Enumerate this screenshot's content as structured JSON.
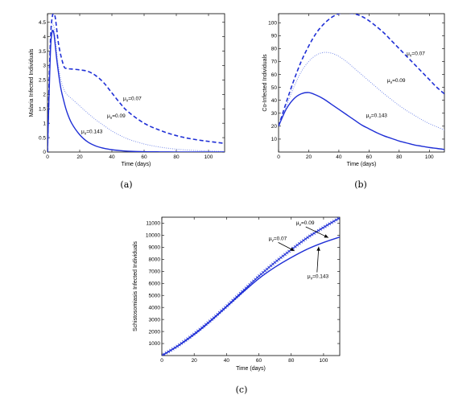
{
  "chart_data": [
    {
      "type": "line",
      "caption": "(a)",
      "xlabel": "Time (days)",
      "ylabel": "Malaria Infected Individuals",
      "xlim": [
        0,
        110
      ],
      "ylim": [
        0,
        4.8
      ],
      "xticks": [
        0,
        20,
        40,
        60,
        80,
        100
      ],
      "yticks": [
        0,
        0.5,
        1,
        1.5,
        2,
        2.5,
        3,
        3.5,
        4,
        4.5
      ],
      "ytick_labels": [
        "0",
        "0.5",
        "1",
        "1.5",
        "2",
        "2.5",
        "3",
        "3.5",
        "4",
        "4.5"
      ],
      "grid": false,
      "series": [
        {
          "name": "μv=0.07",
          "style": "dashed",
          "color": "#1f2fd6",
          "x": [
            0,
            1,
            2,
            3,
            4,
            5,
            7,
            10,
            12,
            15,
            20,
            25,
            30,
            35,
            40,
            45,
            50,
            60,
            70,
            80,
            90,
            100,
            110
          ],
          "y": [
            0,
            2.4,
            4.1,
            4.7,
            4.8,
            4.6,
            3.7,
            3.0,
            2.9,
            2.88,
            2.85,
            2.8,
            2.65,
            2.4,
            2.05,
            1.7,
            1.4,
            1.0,
            0.75,
            0.57,
            0.45,
            0.37,
            0.3
          ]
        },
        {
          "name": "μv=0.09",
          "style": "dotted",
          "color": "#7a8ee8",
          "x": [
            0,
            1,
            2,
            3,
            4,
            5,
            6,
            8,
            10,
            12,
            15,
            20,
            25,
            30,
            35,
            40,
            45,
            50,
            60,
            70,
            80,
            90,
            100,
            110
          ],
          "y": [
            0,
            2.2,
            3.9,
            4.4,
            4.35,
            3.9,
            3.3,
            2.6,
            2.2,
            2.0,
            1.85,
            1.6,
            1.35,
            1.12,
            0.92,
            0.73,
            0.58,
            0.45,
            0.28,
            0.17,
            0.1,
            0.06,
            0.035,
            0.02
          ]
        },
        {
          "name": "μv=0.143",
          "style": "solid",
          "color": "#1f2fd6",
          "x": [
            0,
            1,
            2,
            3,
            4,
            5,
            6,
            8,
            10,
            12,
            15,
            20,
            25,
            30,
            35,
            40,
            45,
            50,
            60,
            70,
            80,
            90,
            100,
            110
          ],
          "y": [
            0,
            2.0,
            3.7,
            4.2,
            4.1,
            3.6,
            3.1,
            2.3,
            1.8,
            1.4,
            1.0,
            0.6,
            0.35,
            0.21,
            0.13,
            0.08,
            0.05,
            0.03,
            0.012,
            0.006,
            0.003,
            0.002,
            0.001,
            0.0
          ]
        }
      ],
      "annotations": [
        {
          "mu": "μ",
          "sub": "v",
          "text": "=0.07",
          "x": 47,
          "y": 1.8
        },
        {
          "mu": "μ",
          "sub": "v",
          "text": "=0.09",
          "x": 37,
          "y": 1.2
        },
        {
          "mu": "μ",
          "sub": "v",
          "text": "=0.143",
          "x": 21,
          "y": 0.65
        }
      ]
    },
    {
      "type": "line",
      "caption": "(b)",
      "xlabel": "Time (days)",
      "ylabel": "Co-Infected Individuals",
      "xlim": [
        0,
        110
      ],
      "ylim": [
        0,
        107
      ],
      "xticks": [
        0,
        20,
        40,
        60,
        80,
        100
      ],
      "yticks": [
        10,
        20,
        30,
        40,
        50,
        60,
        70,
        80,
        90,
        100
      ],
      "ytick_labels": [
        "10",
        "20",
        "30",
        "40",
        "50",
        "60",
        "70",
        "80",
        "90",
        "100"
      ],
      "grid": false,
      "series": [
        {
          "name": "μv=0.07",
          "style": "dashed",
          "color": "#1f2fd6",
          "x": [
            0,
            5,
            10,
            15,
            20,
            25,
            30,
            35,
            40,
            45,
            50,
            55,
            60,
            65,
            70,
            75,
            80,
            85,
            90,
            95,
            100,
            105,
            110
          ],
          "y": [
            20,
            38,
            55,
            70,
            82,
            92,
            99,
            104,
            107,
            107.5,
            107,
            105,
            101.5,
            97,
            92,
            86,
            80,
            74,
            68,
            62,
            56,
            50,
            45
          ]
        },
        {
          "name": "μv=0.09",
          "style": "dotted",
          "color": "#7a8ee8",
          "x": [
            0,
            5,
            10,
            15,
            20,
            25,
            30,
            35,
            40,
            45,
            50,
            55,
            60,
            65,
            70,
            75,
            80,
            85,
            90,
            95,
            100,
            105,
            110
          ],
          "y": [
            20,
            35,
            50,
            62,
            70,
            75,
            77,
            76.5,
            74,
            70,
            65,
            60,
            55,
            50,
            45,
            40.5,
            36,
            32,
            28.5,
            25,
            22,
            19.5,
            17
          ]
        },
        {
          "name": "μv=0.143",
          "style": "solid",
          "color": "#1f2fd6",
          "x": [
            0,
            5,
            10,
            15,
            20,
            25,
            30,
            35,
            40,
            45,
            50,
            55,
            60,
            65,
            70,
            75,
            80,
            85,
            90,
            95,
            100,
            105,
            110
          ],
          "y": [
            20,
            33,
            41,
            45,
            46,
            44,
            41,
            37,
            33,
            29,
            25,
            21,
            18,
            15,
            12.5,
            10.5,
            8.5,
            7,
            5.5,
            4.5,
            3.5,
            2.8,
            2
          ]
        }
      ],
      "annotations": [
        {
          "mu": "μ",
          "sub": "v",
          "text": "=0.07",
          "x": 85,
          "y": 75
        },
        {
          "mu": "μ",
          "sub": "v",
          "text": "=0.09",
          "x": 72,
          "y": 54
        },
        {
          "mu": "μ",
          "sub": "v",
          "text": "=0.143",
          "x": 58,
          "y": 27
        }
      ]
    },
    {
      "type": "line",
      "caption": "(c)",
      "xlabel": "Time (days)",
      "ylabel": "Schistosomiasis Infected Individuals",
      "xlim": [
        0,
        110
      ],
      "ylim": [
        0,
        11500
      ],
      "xticks": [
        0,
        20,
        40,
        60,
        80,
        100
      ],
      "yticks": [
        1000,
        2000,
        3000,
        4000,
        5000,
        6000,
        7000,
        8000,
        9000,
        10000,
        11000
      ],
      "ytick_labels": [
        "1000",
        "2000",
        "3000",
        "4000",
        "5000",
        "6000",
        "7000",
        "8000",
        "9000",
        "10000",
        "11000"
      ],
      "grid": false,
      "series": [
        {
          "name": "μv=0.07",
          "style": "marker",
          "color": "#1f2fd6",
          "x": [
            0,
            10,
            20,
            30,
            40,
            50,
            60,
            70,
            80,
            90,
            100,
            110
          ],
          "y": [
            0,
            820,
            1800,
            2900,
            4100,
            5350,
            6600,
            7750,
            8800,
            9800,
            10650,
            11450
          ]
        },
        {
          "name": "μv=0.09",
          "style": "dotted",
          "color": "#1f2fd6",
          "x": [
            0,
            10,
            20,
            30,
            40,
            50,
            60,
            70,
            80,
            90,
            100,
            110
          ],
          "y": [
            0,
            820,
            1800,
            2900,
            4100,
            5350,
            6600,
            7750,
            8800,
            9800,
            10650,
            11450
          ]
        },
        {
          "name": "μv=0.143",
          "style": "solid",
          "color": "#1f2fd6",
          "x": [
            0,
            10,
            20,
            30,
            40,
            50,
            60,
            70,
            80,
            90,
            100,
            110
          ],
          "y": [
            0,
            800,
            1750,
            2850,
            4050,
            5250,
            6400,
            7350,
            8150,
            8850,
            9400,
            9850
          ]
        }
      ],
      "annotations": [
        {
          "mu": "μ",
          "sub": "v",
          "text": "=0.07",
          "x": 66,
          "y": 9600,
          "arrow_to": [
            82,
            8700
          ]
        },
        {
          "mu": "μ",
          "sub": "v",
          "text": "=0.09",
          "x": 83,
          "y": 10900,
          "arrow_to": [
            103,
            9800
          ]
        },
        {
          "mu": "μ",
          "sub": "v",
          "text": "=0.143",
          "x": 90,
          "y": 6450,
          "arrow_to": [
            97,
            9050
          ]
        }
      ]
    }
  ]
}
